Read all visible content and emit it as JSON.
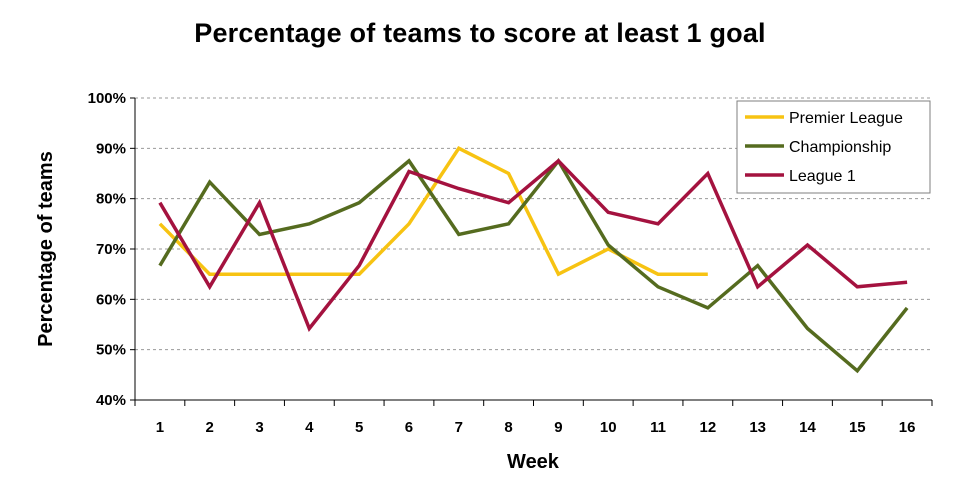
{
  "chart_data": {
    "type": "line",
    "title": "Percentage of teams to score at least 1 goal",
    "xlabel": "Week",
    "ylabel": "Percentage of teams",
    "x": [
      1,
      2,
      3,
      4,
      5,
      6,
      7,
      8,
      9,
      10,
      11,
      12,
      13,
      14,
      15,
      16
    ],
    "ylim": [
      40,
      100
    ],
    "y_ticks": [
      "40%",
      "50%",
      "60%",
      "70%",
      "80%",
      "90%",
      "100%"
    ],
    "grid": "horizontal dashed",
    "legend_position": "top-right",
    "series": [
      {
        "name": "Premier League",
        "color": "#F7C312",
        "values": [
          75,
          65,
          65,
          65,
          65,
          75,
          90,
          85,
          65,
          70,
          65,
          65,
          null,
          null,
          null,
          null
        ]
      },
      {
        "name": "Championship",
        "color": "#556B1F",
        "values": [
          66.7,
          83.3,
          72.9,
          75,
          79.2,
          87.5,
          72.9,
          75,
          87.5,
          70.8,
          62.5,
          58.3,
          66.7,
          54.2,
          45.8,
          58.3
        ]
      },
      {
        "name": "League 1",
        "color": "#A4123F",
        "values": [
          79.2,
          62.5,
          79.2,
          54.2,
          66.7,
          85.4,
          82,
          79.2,
          87.5,
          77.3,
          75,
          85,
          62.5,
          70.8,
          62.5,
          63.4
        ]
      }
    ]
  }
}
